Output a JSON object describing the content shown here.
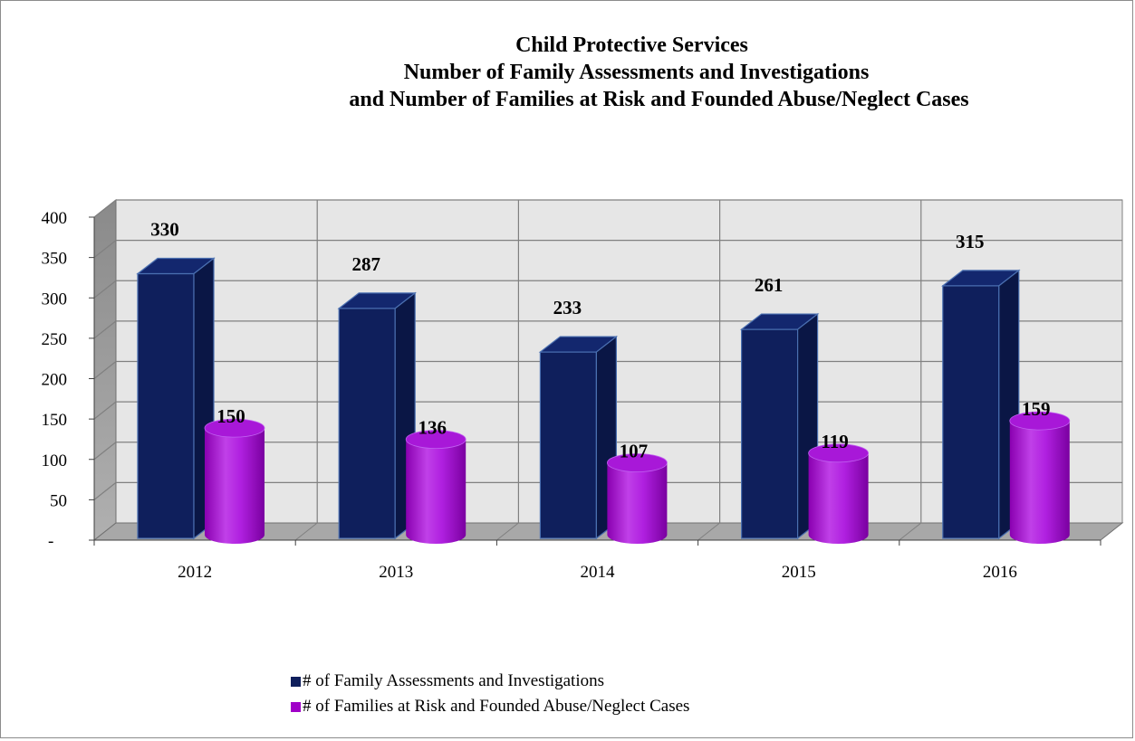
{
  "chart_data": {
    "type": "bar",
    "title_lines": [
      "Child Protective Services",
      "Number of Family Assessments and Investigations",
      "and Number of Families at Risk and Founded Abuse/Neglect Cases"
    ],
    "categories": [
      "2012",
      "2013",
      "2014",
      "2015",
      "2016"
    ],
    "series": [
      {
        "name": "# of Family Assessments and Investigations",
        "values": [
          330,
          287,
          233,
          261,
          315
        ],
        "color": "#0f1f5c",
        "shape": "box"
      },
      {
        "name": "# of Families at Risk and Founded Abuse/Neglect Cases",
        "values": [
          150,
          136,
          107,
          119,
          159
        ],
        "color": "#a000c8",
        "shape": "cylinder"
      }
    ],
    "ylim": [
      0,
      400
    ],
    "yticks": [
      {
        "value": 0,
        "label": "-"
      },
      {
        "value": 50,
        "label": "50"
      },
      {
        "value": 100,
        "label": "100"
      },
      {
        "value": 150,
        "label": "150"
      },
      {
        "value": 200,
        "label": "200"
      },
      {
        "value": 250,
        "label": "250"
      },
      {
        "value": 300,
        "label": "300"
      },
      {
        "value": 350,
        "label": "350"
      },
      {
        "value": 400,
        "label": "400"
      }
    ],
    "grid": true,
    "legend_position": "bottom",
    "data_labels": true
  }
}
